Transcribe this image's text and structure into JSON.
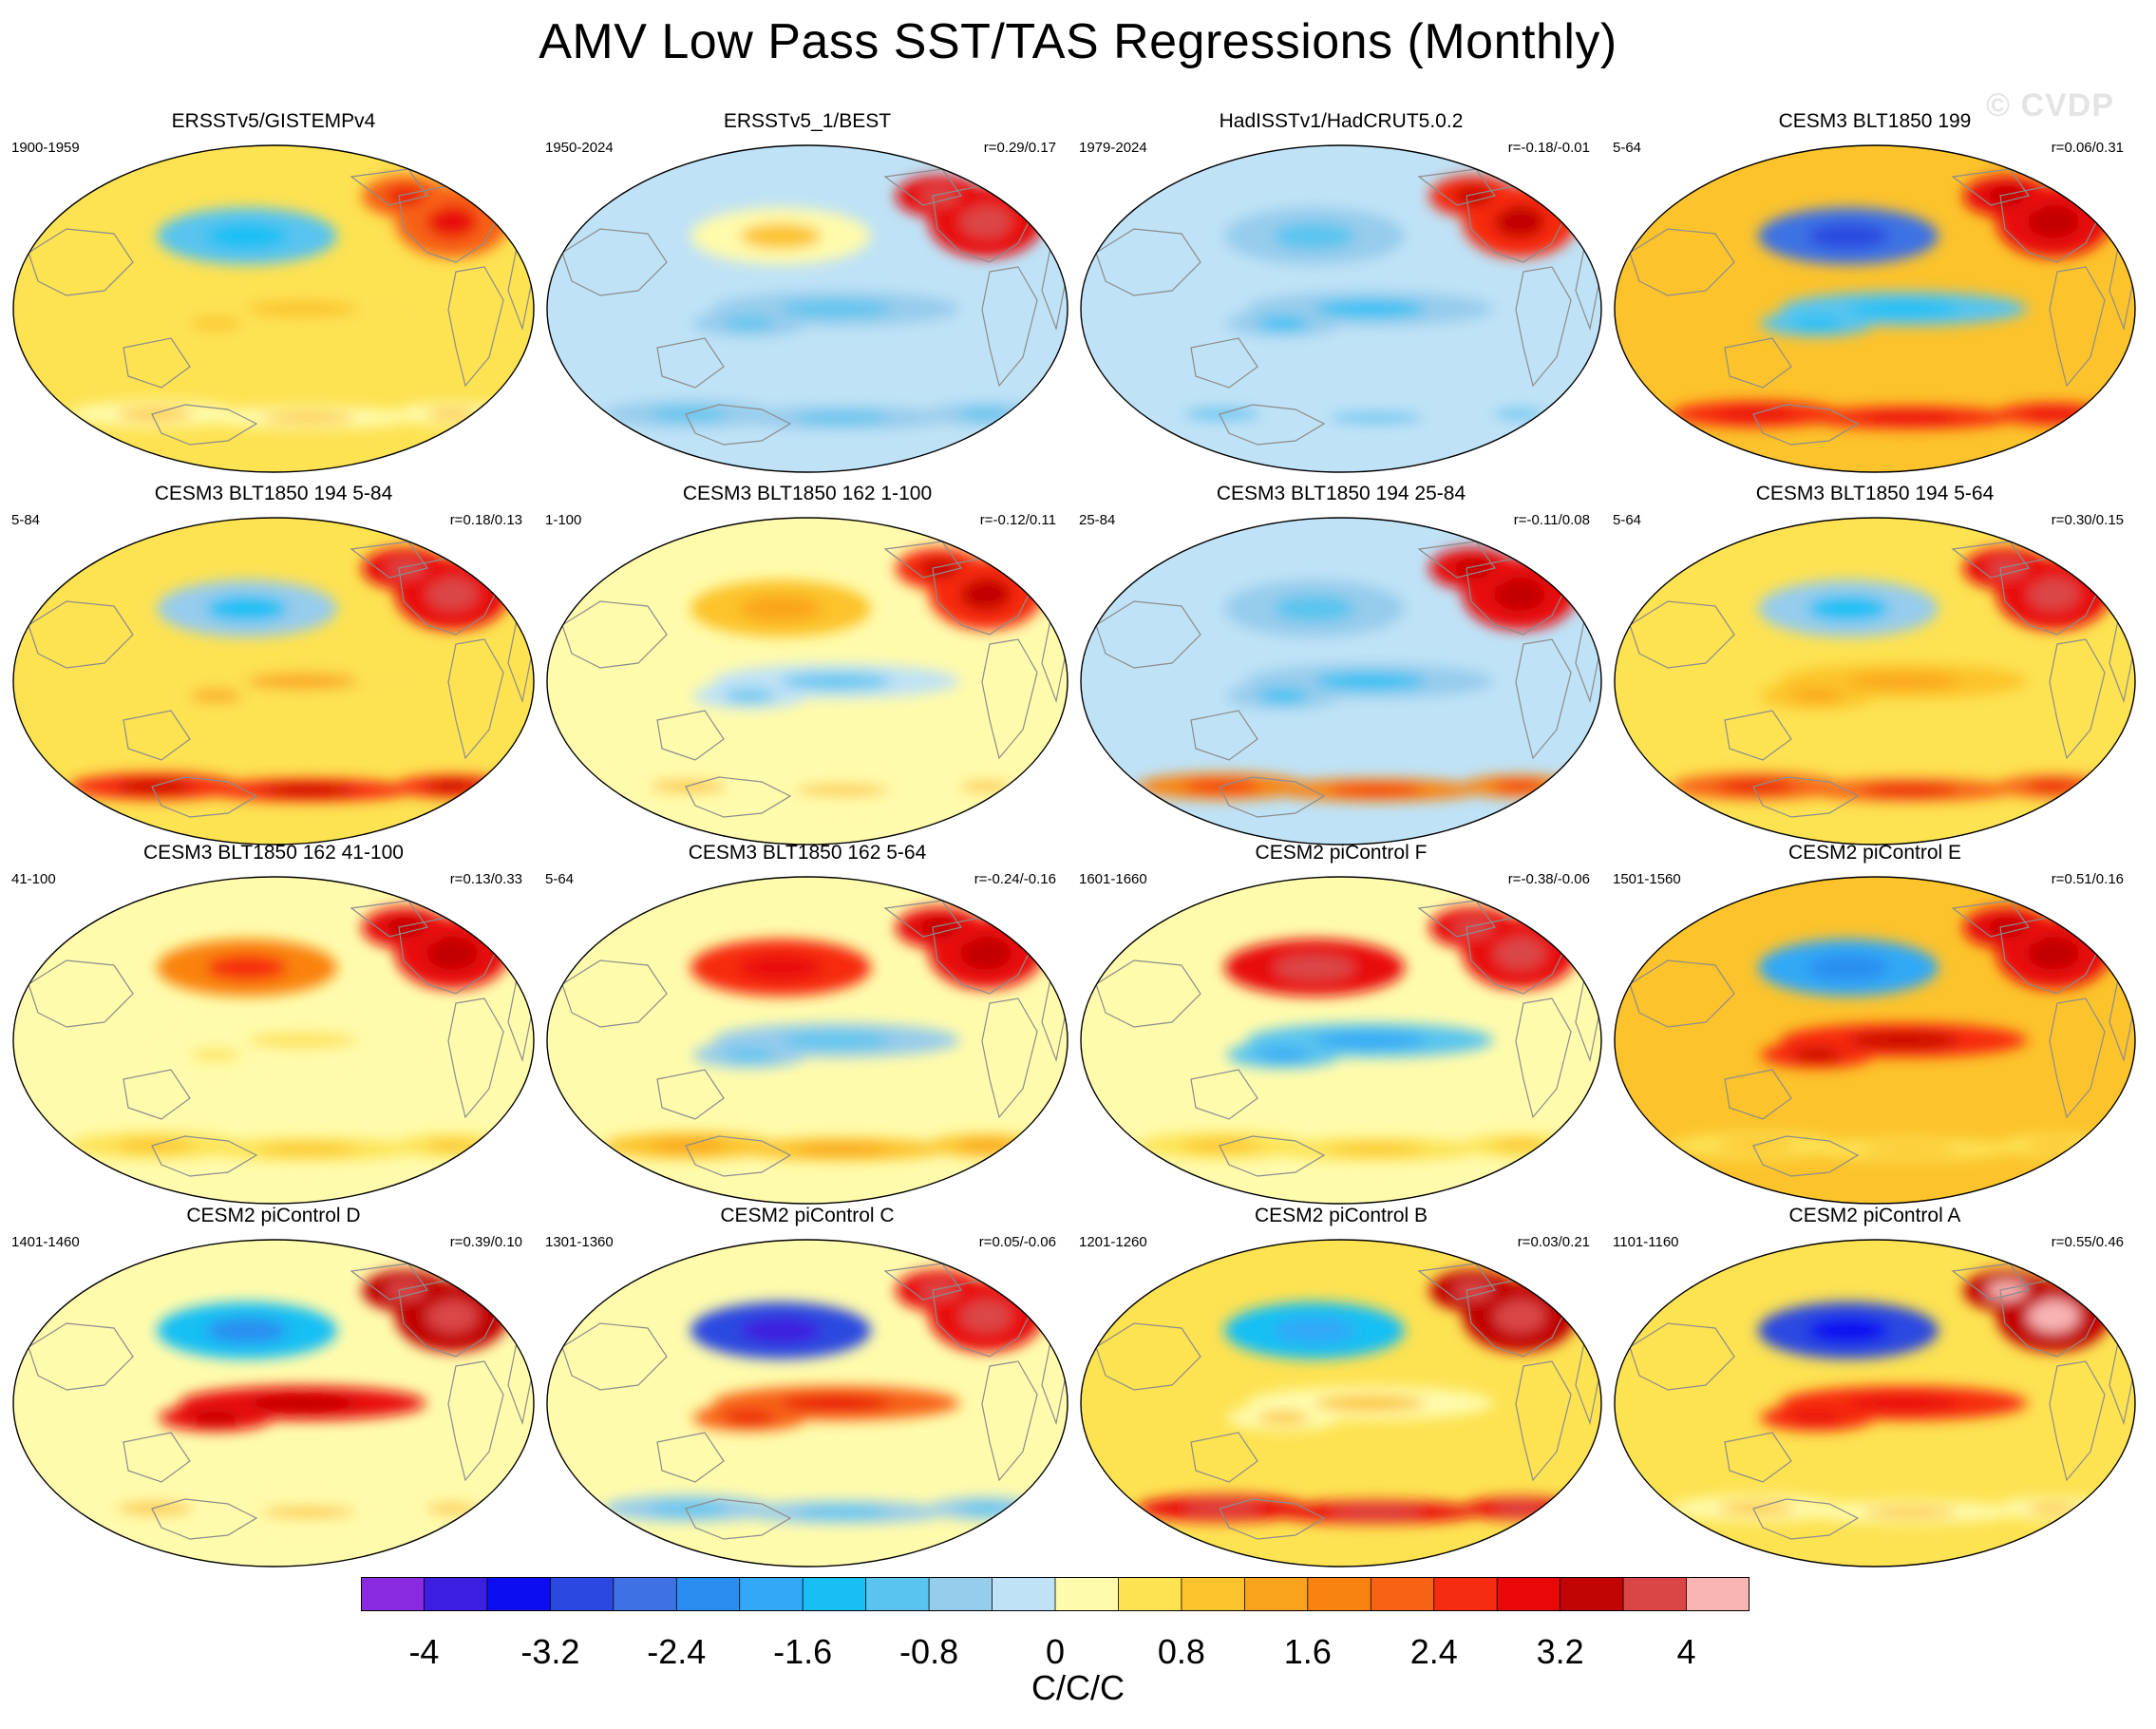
{
  "chart_data": {
    "type": "heatmap",
    "title": "AMV Low Pass SST/TAS Regressions (Monthly)",
    "watermark": "© CVDP",
    "projection": "Robinson (global maps, 4x4 panel grid)",
    "panels": [
      {
        "title": "ERSSTv5/GISTEMPv4",
        "period": "1900-1959",
        "r": "",
        "pattern": {
          "global": 0.6,
          "north_atlantic": 2.3,
          "north_pacific": -0.9,
          "tropical_pacific": 0.4,
          "southern_ocean": 0.3
        }
      },
      {
        "title": "ERSSTv5_1/BEST",
        "period": "1950-2024",
        "r": "r=0.29/0.17",
        "pattern": {
          "global": -0.2,
          "north_atlantic": 3.0,
          "north_pacific": 0.3,
          "tropical_pacific": -0.5,
          "southern_ocean": -0.6
        }
      },
      {
        "title": "HadISSTv1/HadCRUT5.0.2",
        "period": "1979-2024",
        "r": "r=-0.18/-0.01",
        "pattern": {
          "global": -0.3,
          "north_atlantic": 2.6,
          "north_pacific": -0.5,
          "tropical_pacific": -0.8,
          "southern_ocean": -0.3
        }
      },
      {
        "title": "CESM3 BLT1850 199",
        "period": "5-64",
        "r": "r=0.06/0.31",
        "pattern": {
          "global": 1.0,
          "north_atlantic": 2.8,
          "north_pacific": -2.6,
          "tropical_pacific": -0.9,
          "southern_ocean": 2.4
        }
      },
      {
        "title": "CESM3 BLT1850 194 5-84",
        "period": "5-84",
        "r": "r=0.18/0.13",
        "pattern": {
          "global": 0.6,
          "north_atlantic": 3.0,
          "north_pacific": -0.8,
          "tropical_pacific": 0.7,
          "southern_ocean": 2.6
        }
      },
      {
        "title": "CESM3 BLT1850 162 1-100",
        "period": "1-100",
        "r": "r=-0.12/0.11",
        "pattern": {
          "global": 0.2,
          "north_atlantic": 2.6,
          "north_pacific": 0.9,
          "tropical_pacific": -0.4,
          "southern_ocean": 0.2
        }
      },
      {
        "title": "CESM3 BLT1850 194 25-84",
        "period": "25-84",
        "r": "r=-0.11/0.08",
        "pattern": {
          "global": -0.2,
          "north_atlantic": 2.8,
          "north_pacific": -0.6,
          "tropical_pacific": -0.7,
          "southern_ocean": 1.8
        }
      },
      {
        "title": "CESM3 BLT1850 194 5-64",
        "period": "5-64",
        "r": "r=0.30/0.15",
        "pattern": {
          "global": 0.7,
          "north_atlantic": 3.0,
          "north_pacific": -0.7,
          "tropical_pacific": 0.9,
          "southern_ocean": 2.2
        }
      },
      {
        "title": "CESM3 BLT1850 162 41-100",
        "period": "41-100",
        "r": "r=0.13/0.33",
        "pattern": {
          "global": 0.2,
          "north_atlantic": 2.8,
          "north_pacific": 1.8,
          "tropical_pacific": 0.1,
          "southern_ocean": 0.4
        }
      },
      {
        "title": "CESM3 BLT1850 162 5-64",
        "period": "5-64",
        "r": "r=-0.24/-0.16",
        "pattern": {
          "global": 0.3,
          "north_atlantic": 2.8,
          "north_pacific": 2.4,
          "tropical_pacific": -0.6,
          "southern_ocean": 0.8
        }
      },
      {
        "title": "CESM2 piControl F",
        "period": "1601-1660",
        "r": "r=-0.38/-0.06",
        "pattern": {
          "global": 0.0,
          "north_atlantic": 3.0,
          "north_pacific": 3.0,
          "tropical_pacific": -1.2,
          "southern_ocean": 0.5
        }
      },
      {
        "title": "CESM2 piControl E",
        "period": "1501-1560",
        "r": "r=0.51/0.16",
        "pattern": {
          "global": 0.8,
          "north_atlantic": 2.8,
          "north_pacific": -1.8,
          "tropical_pacific": 2.6,
          "southern_ocean": 0.4
        }
      },
      {
        "title": "CESM2 piControl D",
        "period": "1401-1460",
        "r": "r=0.39/0.10",
        "pattern": {
          "global": 0.3,
          "north_atlantic": 3.2,
          "north_pacific": -1.6,
          "tropical_pacific": 2.8,
          "southern_ocean": 0.2
        }
      },
      {
        "title": "CESM2 piControl C",
        "period": "1301-1360",
        "r": "r=0.05/-0.06",
        "pattern": {
          "global": 0.2,
          "north_atlantic": 3.0,
          "north_pacific": -3.2,
          "tropical_pacific": 2.2,
          "southern_ocean": -0.5
        }
      },
      {
        "title": "CESM2 piControl B",
        "period": "1201-1260",
        "r": "r=0.03/0.21",
        "pattern": {
          "global": 0.4,
          "north_atlantic": 3.2,
          "north_pacific": -1.4,
          "tropical_pacific": 0.3,
          "southern_ocean": 3.0
        }
      },
      {
        "title": "CESM2 piControl A",
        "period": "1101-1160",
        "r": "r=0.55/0.46",
        "pattern": {
          "global": 0.6,
          "north_atlantic": 3.4,
          "north_pacific": -3.0,
          "tropical_pacific": 2.4,
          "southern_ocean": 0.3
        }
      }
    ],
    "colorbar": {
      "units": "C/C/C",
      "range": [
        -4.4,
        4.4
      ],
      "step": 0.4,
      "tick_labels": [
        "-4",
        "-3.2",
        "-2.4",
        "-1.6",
        "-0.8",
        "0",
        "0.8",
        "1.6",
        "2.4",
        "3.2",
        "4"
      ],
      "tick_values": [
        -4,
        -3.2,
        -2.4,
        -1.6,
        -0.8,
        0,
        0.8,
        1.6,
        2.4,
        3.2,
        4
      ],
      "colors": [
        "#8a2be2",
        "#3c1fe0",
        "#0d0df2",
        "#2b48e0",
        "#3e72e4",
        "#2a8ef0",
        "#33a8f6",
        "#18bff4",
        "#58c4ef",
        "#96ccec",
        "#bfe2f6",
        "#fffbac",
        "#fde252",
        "#fcc32c",
        "#faa41e",
        "#f98310",
        "#f76214",
        "#f62c10",
        "#e80808",
        "#c10505",
        "#da4646",
        "#f9b4b4"
      ]
    }
  }
}
